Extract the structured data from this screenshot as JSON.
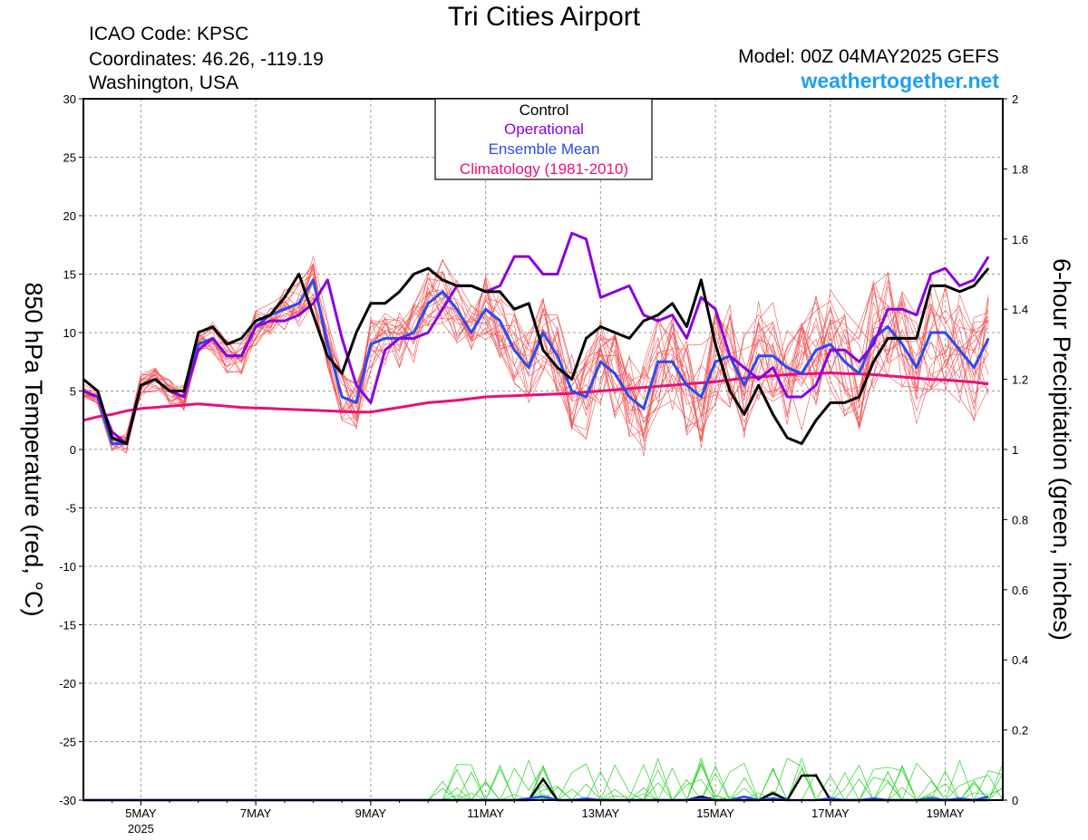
{
  "header": {
    "title": "Tri Cities Airport",
    "icao": "ICAO Code: KPSC",
    "coordinates": "Coordinates: 46.26, -119.19",
    "region": "Washington, USA",
    "model": "Model: 00Z 04MAY2025 GEFS",
    "site": "weathertogether.net"
  },
  "chart_data": {
    "type": "line",
    "title": "Tri Cities Airport",
    "ylabel": "850 hPa Temperature (red, °C)",
    "ylabel2": "6-hour Precipitation (green, inches)",
    "ylim": [
      -30,
      30
    ],
    "y2lim": [
      0,
      2
    ],
    "yticks": [
      "30",
      "25",
      "20",
      "15",
      "10",
      "5",
      "0",
      "-5",
      "-10",
      "-15",
      "-20",
      "-25",
      "-30"
    ],
    "y2ticks": [
      "2",
      "1.8",
      "1.6",
      "1.4",
      "1.2",
      "1",
      "0.8",
      "0.6",
      "0.4",
      "0.2",
      "0"
    ],
    "x_start": "00Z 04MAY2025",
    "x_step_hours": 6,
    "x_ticks": [
      {
        "label": "5MAY",
        "sub": "2025",
        "index": 4
      },
      {
        "label": "7MAY",
        "index": 12
      },
      {
        "label": "9MAY",
        "index": 20
      },
      {
        "label": "11MAY",
        "index": 28
      },
      {
        "label": "13MAY",
        "index": 36
      },
      {
        "label": "15MAY",
        "index": 44
      },
      {
        "label": "17MAY",
        "index": 52
      },
      {
        "label": "19MAY",
        "index": 60
      }
    ],
    "grid": true,
    "legend": {
      "position": "top-center",
      "entries": [
        {
          "label": "Control",
          "color": "#000000"
        },
        {
          "label": "Operational",
          "color": "#8a00e0"
        },
        {
          "label": "Ensemble Mean",
          "color": "#2a4bf0"
        },
        {
          "label": "Climatology (1981-2010)",
          "color": "#e8107a"
        }
      ]
    },
    "colors": {
      "members": "#f05050",
      "precip": "#3cd63c",
      "control": "#000000",
      "operational": "#8a00e0",
      "mean": "#2a4bf0",
      "climatology": "#e8107a"
    },
    "series": [
      {
        "name": "Control",
        "values": [
          6,
          5,
          1,
          0.5,
          5.5,
          6,
          5,
          5,
          10,
          10.5,
          9,
          9.5,
          11,
          11.5,
          13,
          15,
          11.5,
          8,
          6.5,
          10,
          12.5,
          12.5,
          13.5,
          15,
          15.5,
          14.5,
          14,
          14,
          13.5,
          13.5,
          12,
          12.5,
          8.5,
          7,
          6,
          9.5,
          10.5,
          10,
          9.5,
          11,
          11.5,
          12.5,
          10.5,
          14.5,
          9,
          5,
          3,
          5.5,
          3,
          1,
          0.5,
          2.5,
          4,
          4,
          4.5,
          7.5,
          9.5,
          9.5,
          9.5,
          14,
          14,
          13.5,
          14,
          15.5
        ]
      },
      {
        "name": "Operational",
        "values": [
          5,
          4.5,
          1.5,
          0.5,
          5.5,
          6,
          5,
          4.5,
          8.5,
          9.5,
          8,
          8,
          10.5,
          11,
          11,
          11.5,
          12.5,
          14.5,
          9.5,
          5.5,
          4,
          8.5,
          9.5,
          9.5,
          10,
          12,
          14,
          14,
          13.5,
          14,
          16.5,
          16.5,
          15,
          15,
          18.5,
          18,
          13,
          13.5,
          14,
          11.5,
          11,
          11.5,
          9.5,
          13,
          12,
          8,
          7,
          6,
          7,
          4.5,
          4.5,
          5.5,
          8.5,
          8.5,
          7.5,
          9,
          12,
          12,
          11.5,
          15,
          15.5,
          14,
          14.5,
          16.5
        ]
      },
      {
        "name": "Ensemble Mean",
        "values": [
          5,
          4.5,
          0.5,
          0.5,
          5.5,
          6,
          5,
          4.5,
          9,
          9.5,
          8,
          8,
          10.5,
          11.5,
          12,
          12.5,
          14.5,
          9,
          4.5,
          4,
          9,
          9.5,
          9.5,
          10,
          12.5,
          13.5,
          12,
          10,
          12,
          11,
          8.5,
          7,
          10,
          8,
          5,
          4.5,
          7.5,
          6.5,
          4.5,
          3.5,
          7.5,
          7.5,
          5.5,
          4.5,
          7.5,
          8,
          5.5,
          8,
          8,
          7,
          6.5,
          8.5,
          9,
          7.5,
          6.5,
          9.5,
          10.5,
          9,
          7,
          10,
          10,
          8.5,
          7,
          9.5
        ]
      },
      {
        "name": "Climatology (1981-2010)",
        "values": [
          2.5,
          2.8,
          3,
          3.3,
          3.5,
          3.6,
          3.7,
          3.8,
          3.9,
          3.8,
          3.7,
          3.6,
          3.55,
          3.5,
          3.45,
          3.4,
          3.35,
          3.3,
          3.25,
          3.2,
          3.2,
          3.4,
          3.6,
          3.8,
          4,
          4.1,
          4.2,
          4.35,
          4.5,
          4.55,
          4.6,
          4.65,
          4.7,
          4.75,
          4.8,
          4.9,
          5,
          5.1,
          5.2,
          5.3,
          5.4,
          5.5,
          5.6,
          5.7,
          5.8,
          5.95,
          6.1,
          6.2,
          6.3,
          6.4,
          6.45,
          6.5,
          6.55,
          6.5,
          6.45,
          6.4,
          6.3,
          6.2,
          6.1,
          6,
          5.95,
          5.85,
          5.75,
          5.6
        ]
      }
    ],
    "precip_series": [
      {
        "name": "Control precipitation",
        "values": [
          0,
          0,
          0,
          0,
          0,
          0,
          0,
          0,
          0,
          0,
          0,
          0,
          0,
          0,
          0,
          0,
          0,
          0,
          0,
          0,
          0,
          0,
          0,
          0,
          0,
          0,
          0,
          0,
          0,
          0,
          0,
          0,
          0.06,
          0,
          0,
          0,
          0,
          0,
          0,
          0,
          0,
          0,
          0,
          0.01,
          0,
          0,
          0,
          0,
          0.02,
          0,
          0.07,
          0.07,
          0,
          0,
          0,
          0,
          0,
          0,
          0,
          0,
          0,
          0,
          0,
          0
        ]
      },
      {
        "name": "Ensemble Mean precipitation",
        "values": [
          0,
          0,
          0,
          0,
          0,
          0,
          0,
          0,
          0,
          0,
          0,
          0,
          0,
          0,
          0,
          0,
          0,
          0,
          0,
          0,
          0,
          0,
          0,
          0,
          0,
          0,
          0,
          0,
          0,
          0,
          0,
          0.005,
          0.01,
          0,
          0,
          0.005,
          0,
          0,
          0,
          0,
          0,
          0,
          0,
          0.005,
          0,
          0,
          0.01,
          0,
          0.005,
          0,
          0,
          0,
          0.005,
          0,
          0,
          0.005,
          0,
          0,
          0,
          0.005,
          0,
          0.005,
          0,
          0.01
        ]
      }
    ]
  }
}
